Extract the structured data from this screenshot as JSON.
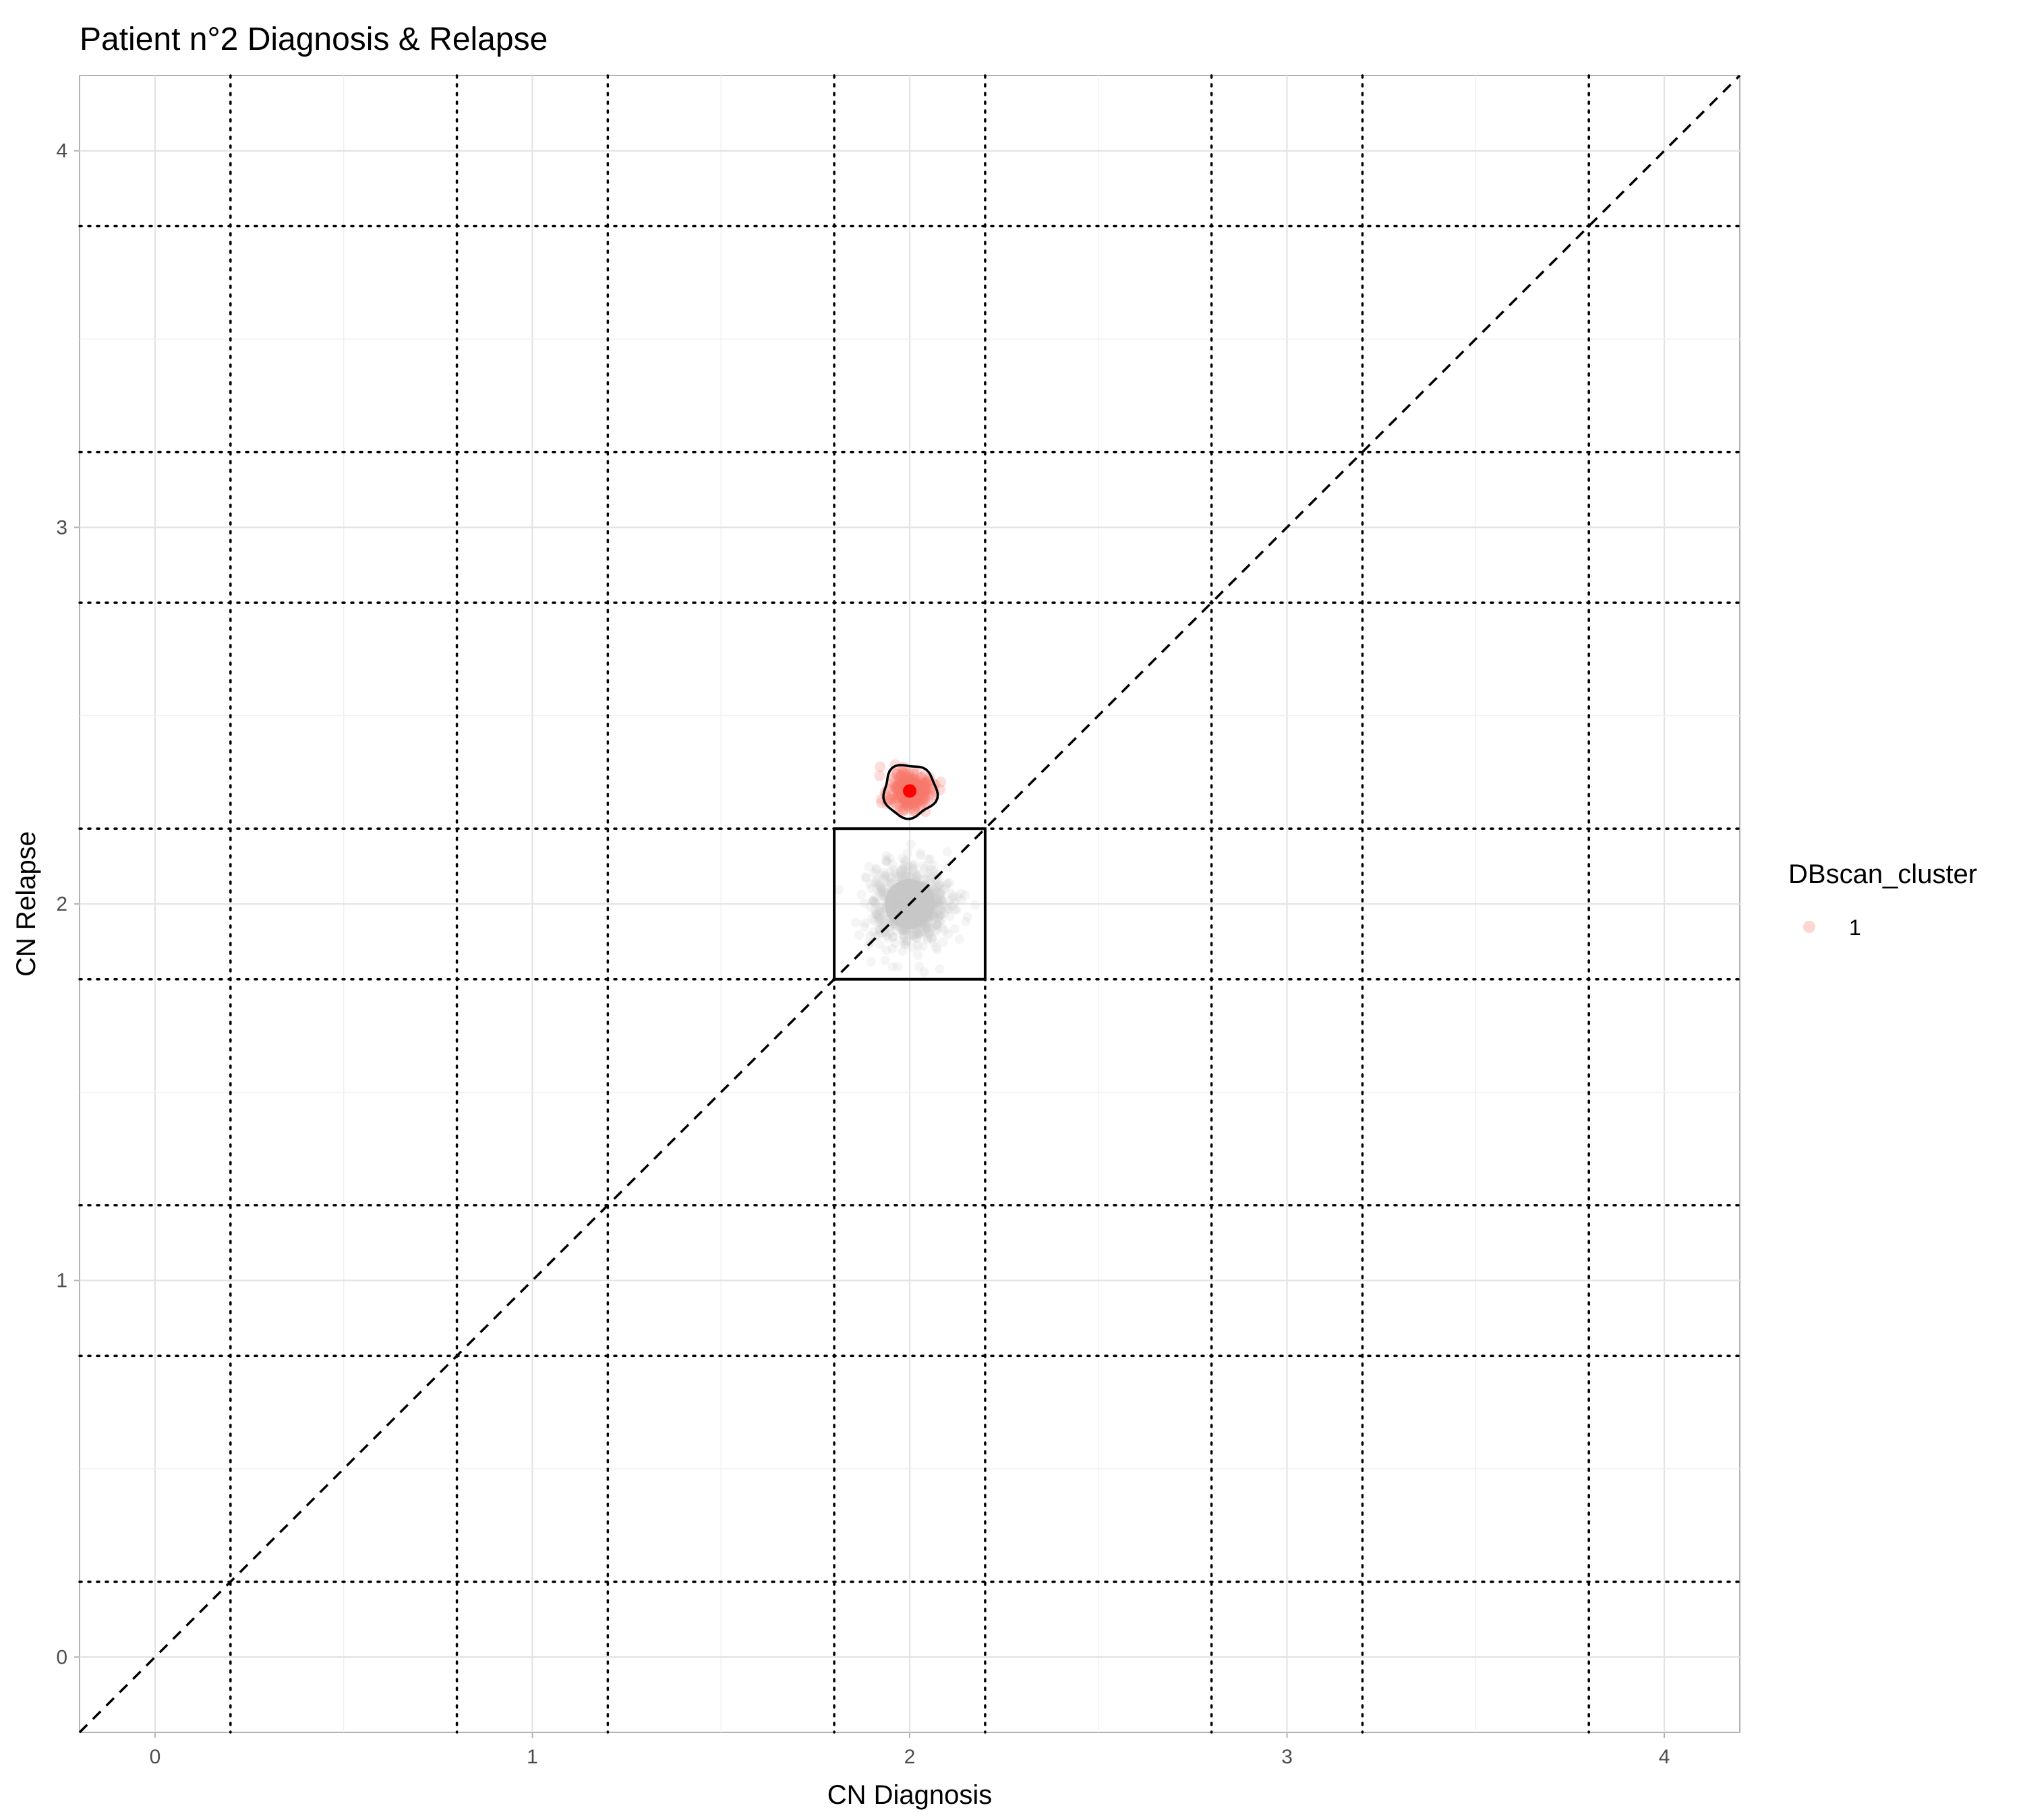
{
  "chart_data": {
    "type": "scatter",
    "title": "Patient n°2 Diagnosis & Relapse",
    "xlabel": "CN Diagnosis",
    "ylabel": "CN Relapse",
    "xlim": [
      -0.2,
      4.2
    ],
    "ylim": [
      -0.2,
      4.2
    ],
    "x_ticks": [
      0,
      1,
      2,
      3,
      4
    ],
    "y_ticks": [
      0,
      1,
      2,
      3,
      4
    ],
    "x_tick_labels": [
      "0",
      "1",
      "2",
      "3",
      "4"
    ],
    "y_tick_labels": [
      "0",
      "1",
      "2",
      "3",
      "4"
    ],
    "grid": true,
    "vertical_dotted_lines": [
      0.2,
      0.8,
      1.2,
      1.8,
      2.2,
      2.8,
      3.2,
      3.8
    ],
    "horizontal_dotted_lines": [
      0.2,
      0.8,
      1.2,
      1.8,
      2.2,
      2.8,
      3.2,
      3.8
    ],
    "diagonal_reference": {
      "from": [
        -0.2,
        -0.2
      ],
      "to": [
        4.2,
        4.2
      ],
      "style": "dashed"
    },
    "box": {
      "x": [
        1.8,
        2.2
      ],
      "y": [
        1.8,
        2.2
      ]
    },
    "background_cloud": {
      "center": [
        2.0,
        2.0
      ],
      "spread": 0.12,
      "color": "#c8c8c8"
    },
    "clusters": [
      {
        "name": "1",
        "center": [
          2.0,
          2.3
        ],
        "spread": 0.07,
        "color": "#f8766d",
        "centroid_color": "#ff0000"
      }
    ],
    "legend": {
      "title": "DBscan_cluster",
      "position": "right",
      "entries": [
        "1"
      ]
    }
  }
}
